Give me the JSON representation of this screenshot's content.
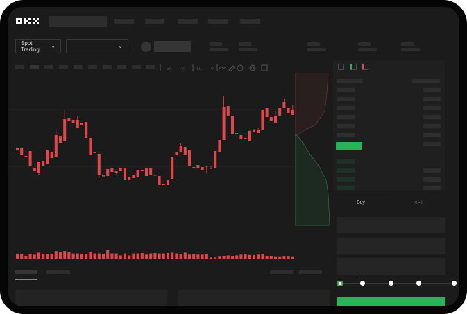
{
  "brand": {
    "logo": "OKX"
  },
  "controls": {
    "market_type": "Spot Trading",
    "pair_select": ""
  },
  "order_form": {
    "tabs": [
      {
        "label": "Buy",
        "active": true
      },
      {
        "label": "Sell",
        "active": false
      }
    ],
    "slider_percent": 0,
    "submit_color": "#27b35a"
  },
  "colors": {
    "up": "#27b35a",
    "down": "#e0474c",
    "background": "#1b1b1b"
  },
  "chart_data": {
    "type": "candlestick",
    "title": "",
    "candles": [
      [
        67,
        63,
        67,
        63
      ],
      [
        67,
        56,
        67,
        56
      ],
      [
        55,
        53,
        55,
        53
      ],
      [
        62,
        40,
        62,
        40
      ],
      [
        38,
        34,
        38,
        34
      ],
      [
        47,
        31,
        47,
        27
      ],
      [
        48,
        40,
        48,
        40
      ],
      [
        63,
        44,
        63,
        44
      ],
      [
        61,
        52,
        61,
        52
      ],
      [
        85,
        54,
        94,
        54
      ],
      [
        84,
        74,
        84,
        74
      ],
      [
        108,
        76,
        122,
        76
      ],
      [
        110,
        105,
        110,
        105
      ],
      [
        107,
        102,
        107,
        102
      ],
      [
        107,
        95,
        112,
        95
      ],
      [
        103,
        100,
        103,
        100
      ],
      [
        104,
        81,
        104,
        81
      ],
      [
        81,
        57,
        81,
        57
      ],
      [
        61,
        59,
        61,
        59
      ],
      [
        58,
        27,
        58,
        23
      ],
      [
        27,
        26,
        27,
        26
      ],
      [
        36,
        26,
        36,
        26
      ],
      [
        37,
        32,
        37,
        32
      ],
      [
        33,
        31,
        33,
        29
      ],
      [
        38,
        33,
        38,
        33
      ],
      [
        38,
        21,
        38,
        21
      ],
      [
        25,
        21,
        25,
        21
      ],
      [
        27,
        23,
        27,
        23
      ],
      [
        35,
        24,
        35,
        24
      ],
      [
        35,
        33,
        35,
        33
      ],
      [
        37,
        26,
        37,
        26
      ],
      [
        37,
        27,
        37,
        27
      ],
      [
        28,
        27,
        28,
        27
      ],
      [
        26,
        13,
        26,
        13
      ],
      [
        15,
        13,
        15,
        13
      ],
      [
        20,
        13,
        20,
        13
      ],
      [
        54,
        22,
        54,
        22
      ],
      [
        60,
        56,
        60,
        56
      ],
      [
        70,
        60,
        73,
        60
      ],
      [
        68,
        57,
        68,
        57
      ],
      [
        64,
        40,
        64,
        40
      ],
      [
        39,
        38,
        39,
        38
      ],
      [
        42,
        37,
        42,
        37
      ],
      [
        39,
        35,
        39,
        35
      ],
      [
        41,
        40,
        41,
        30
      ],
      [
        38,
        37,
        40,
        37
      ],
      [
        62,
        38,
        62,
        38
      ],
      [
        78,
        61,
        78,
        61
      ],
      [
        125,
        78,
        141,
        78
      ],
      [
        127,
        113,
        127,
        113
      ],
      [
        113,
        86,
        113,
        86
      ],
      [
        88,
        86,
        88,
        86
      ],
      [
        85,
        79,
        85,
        79
      ],
      [
        81,
        79,
        81,
        79
      ],
      [
        91,
        76,
        93,
        76
      ],
      [
        92,
        90,
        94,
        90
      ],
      [
        93,
        88,
        95,
        88
      ],
      [
        122,
        93,
        122,
        93
      ],
      [
        124,
        111,
        124,
        111
      ],
      [
        111,
        106,
        111,
        106
      ],
      [
        113,
        103,
        120,
        103
      ],
      [
        124,
        113,
        124,
        113
      ],
      [
        133,
        124,
        137,
        124
      ],
      [
        124,
        117,
        124,
        117
      ],
      [
        121,
        114,
        128,
        114
      ]
    ],
    "candle_format": [
      "open",
      "close",
      "high",
      "low"
    ],
    "volume": [
      12,
      12,
      7,
      12,
      10,
      15,
      11,
      11,
      12,
      19,
      17,
      19,
      16,
      13,
      13,
      11,
      12,
      17,
      13,
      13,
      12,
      21,
      13,
      13,
      8,
      13,
      8,
      13,
      13,
      14,
      10,
      13,
      14,
      13,
      13,
      14,
      15,
      13,
      11,
      15,
      10,
      12,
      10,
      10,
      12,
      3,
      3,
      5,
      7,
      8,
      7,
      8,
      10,
      12,
      9,
      9,
      10,
      12,
      7,
      7,
      4,
      4,
      5,
      5,
      4
    ],
    "xlabel": "",
    "ylabel": ""
  }
}
